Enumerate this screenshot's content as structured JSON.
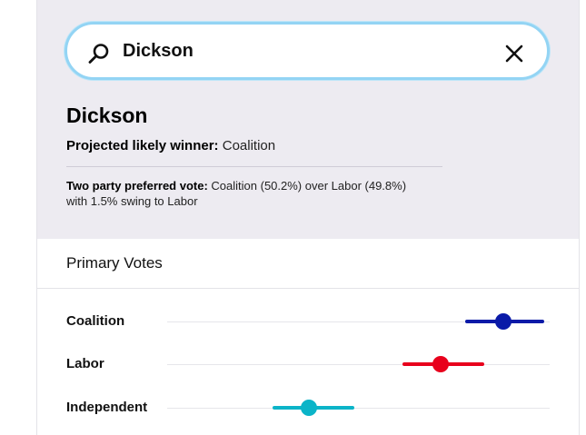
{
  "search": {
    "value": "Dickson",
    "placeholder": ""
  },
  "seat": {
    "name": "Dickson",
    "winner_label": "Projected likely winner:",
    "winner_value": "Coalition",
    "tpp_label": "Two party preferred vote:",
    "tpp_text": "Coalition (50.2%) over Labor (49.8%)",
    "swing_text": "with 1.5% swing to Labor"
  },
  "primary": {
    "header": "Primary Votes",
    "scale_min": 0,
    "scale_max": 1,
    "parties": [
      {
        "name": "Coalition",
        "color": "#0a1aa8",
        "low": 0.78,
        "estimate": 0.88,
        "high": 0.985
      },
      {
        "name": "Labor",
        "color": "#e8001c",
        "low": 0.615,
        "estimate": 0.715,
        "high": 0.83
      },
      {
        "name": "Independent",
        "color": "#0bb4c8",
        "low": 0.275,
        "estimate": 0.37,
        "high": 0.49
      }
    ]
  },
  "icons": {
    "search": "search-icon",
    "clear": "close-icon"
  }
}
